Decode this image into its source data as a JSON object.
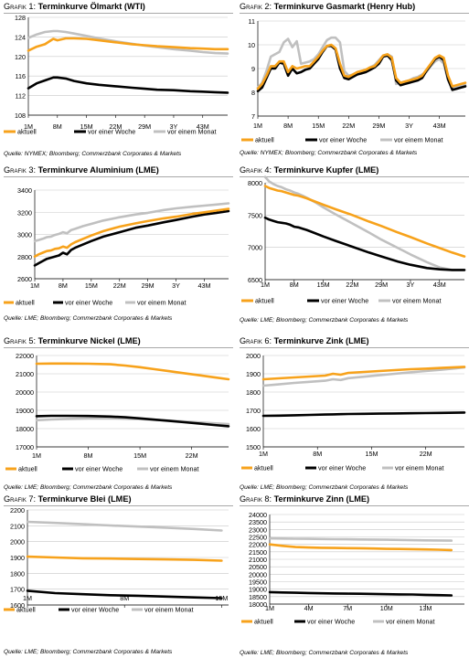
{
  "legend": {
    "aktuell": "aktuell",
    "woche": "vor einer Woche",
    "monat": "vor einem Monat"
  },
  "colors": {
    "aktuell": "#f7a21b",
    "woche": "#000000",
    "monat": "#c0c0c0"
  },
  "panels": [
    {
      "prefix": "Grafik 1:",
      "title": "Terminkurve Ölmarkt (WTI)",
      "source": "Quelle: NYMEX; Bloomberg; Commerzbank Corporates & Markets"
    },
    {
      "prefix": "Grafik 2:",
      "title": "Terminkurve Gasmarkt (Henry Hub)",
      "source": "Quelle: NYMEX; Bloomberg; Commerzbank Corporates & Markets"
    },
    {
      "prefix": "Grafik 3:",
      "title": "Terminkurve Aluminium (LME)",
      "source": "Quelle: LME; Bloomberg; Commerzbank Corporates & Markets"
    },
    {
      "prefix": "Grafik 4:",
      "title": "Terminkurve Kupfer (LME)",
      "source": "Quelle: LME; Bloomberg; Commerzbank Corporates & Markets"
    },
    {
      "prefix": "Grafik 5:",
      "title": "Terminkurve Nickel (LME)",
      "source": "Quelle: LME; Bloomberg; Commerzbank Corporates & Markets"
    },
    {
      "prefix": "Grafik 6:",
      "title": "Terminkurve Zink (LME)",
      "source": "Quelle: LME; Bloomberg; Commerzbank Corporates & Markets"
    },
    {
      "prefix": "Grafik 7:",
      "title": "Terminkurve Blei (LME)",
      "source": "Quelle: LME; Bloomberg; Commerzbank Corporates & Markets"
    },
    {
      "prefix": "Grafik 8:",
      "title": "Terminkurve Zinn (LME)",
      "source": "Quelle: LME; Bloomberg; Commerzbank Corporates & Markets"
    }
  ],
  "chart_data": [
    {
      "type": "line",
      "xlim": [
        1,
        49
      ],
      "ylim": [
        108,
        128
      ],
      "yticks": [
        108,
        112,
        116,
        120,
        124,
        128
      ],
      "xticks": [
        1,
        8,
        15,
        22,
        29,
        36,
        43
      ],
      "xticklabels": [
        "1M",
        "8M",
        "15M",
        "22M",
        "29M",
        "3Y",
        "43M"
      ],
      "x": [
        1,
        3,
        5,
        7,
        8,
        10,
        12,
        15,
        18,
        22,
        26,
        29,
        32,
        36,
        40,
        43,
        46,
        49
      ],
      "series": [
        {
          "name": "aktuell",
          "values": [
            121.2,
            122,
            122.5,
            123.6,
            123.3,
            123.7,
            123.7,
            123.6,
            123.3,
            122.9,
            122.5,
            122.3,
            122.1,
            121.9,
            121.7,
            121.6,
            121.5,
            121.5
          ]
        },
        {
          "name": "vor einer Woche",
          "values": [
            113.5,
            114.5,
            115.1,
            115.7,
            115.7,
            115.5,
            115,
            114.5,
            114.2,
            113.9,
            113.6,
            113.4,
            113.2,
            113.1,
            112.9,
            112.8,
            112.7,
            112.6
          ]
        },
        {
          "name": "vor einem Monat",
          "values": [
            123.8,
            124.5,
            125,
            125.2,
            125.2,
            125,
            124.7,
            124.2,
            123.7,
            123.1,
            122.6,
            122.2,
            121.9,
            121.5,
            121.2,
            120.9,
            120.7,
            120.6
          ]
        }
      ]
    },
    {
      "type": "line",
      "xlim": [
        1,
        49
      ],
      "ylim": [
        7,
        11
      ],
      "yticks": [
        7,
        8,
        9,
        10,
        11
      ],
      "xticks": [
        1,
        8,
        15,
        22,
        29,
        36,
        43
      ],
      "xticklabels": [
        "1M",
        "8M",
        "15M",
        "22M",
        "29M",
        "3Y",
        "43M"
      ],
      "x": [
        1,
        2,
        3,
        4,
        5,
        6,
        7,
        8,
        9,
        10,
        11,
        12,
        13,
        14,
        15,
        16,
        17,
        18,
        19,
        20,
        21,
        22,
        23,
        24,
        25,
        26,
        27,
        28,
        29,
        30,
        31,
        32,
        33,
        34,
        35,
        36,
        37,
        38,
        39,
        40,
        41,
        42,
        43,
        44,
        45,
        46,
        47,
        48,
        49
      ],
      "series": [
        {
          "name": "aktuell",
          "values": [
            8.15,
            8.35,
            8.7,
            9.1,
            9.1,
            9.3,
            9.3,
            8.85,
            9.1,
            9.0,
            9.05,
            9.1,
            9.1,
            9.3,
            9.5,
            9.75,
            9.95,
            10.0,
            9.85,
            9.2,
            8.7,
            8.65,
            8.75,
            8.85,
            8.9,
            8.95,
            9.05,
            9.1,
            9.3,
            9.55,
            9.6,
            9.45,
            8.6,
            8.4,
            8.45,
            8.5,
            8.55,
            8.6,
            8.7,
            8.95,
            9.2,
            9.45,
            9.55,
            9.45,
            8.7,
            8.25,
            8.3,
            8.35,
            8.4
          ]
        },
        {
          "name": "vor einer Woche",
          "values": [
            8.05,
            8.2,
            8.6,
            9.0,
            9.0,
            9.25,
            9.2,
            8.7,
            9.0,
            8.8,
            8.85,
            8.95,
            9.0,
            9.2,
            9.4,
            9.7,
            9.95,
            9.95,
            9.8,
            9.0,
            8.6,
            8.55,
            8.65,
            8.75,
            8.8,
            8.85,
            8.95,
            9.05,
            9.2,
            9.5,
            9.55,
            9.35,
            8.5,
            8.3,
            8.35,
            8.4,
            8.45,
            8.5,
            8.6,
            8.9,
            9.15,
            9.4,
            9.5,
            9.35,
            8.55,
            8.1,
            8.15,
            8.2,
            8.25
          ]
        },
        {
          "name": "vor einem Monat",
          "values": [
            8.2,
            8.4,
            8.9,
            9.5,
            9.6,
            9.7,
            10.1,
            10.25,
            9.9,
            10.15,
            9.2,
            9.25,
            9.3,
            9.4,
            9.6,
            9.9,
            10.2,
            10.3,
            10.3,
            10.1,
            8.9,
            8.7,
            8.75,
            8.85,
            8.9,
            8.95,
            9.05,
            9.15,
            9.35,
            9.55,
            9.6,
            9.5,
            8.35,
            8.4,
            8.45,
            8.5,
            8.6,
            8.65,
            8.75,
            8.85,
            9.1,
            9.3,
            9.4,
            9.2,
            8.5,
            8.15,
            8.2,
            8.25,
            8.3
          ]
        }
      ]
    },
    {
      "type": "line",
      "xlim": [
        1,
        49
      ],
      "ylim": [
        2600,
        3400
      ],
      "yticks": [
        2600,
        2800,
        3000,
        3200,
        3400
      ],
      "xticks": [
        1,
        8,
        15,
        22,
        29,
        36,
        43
      ],
      "xticklabels": [
        "1M",
        "8M",
        "15M",
        "22M",
        "29M",
        "3Y",
        "43M"
      ],
      "x": [
        1,
        2,
        3,
        4,
        5,
        6,
        7,
        8,
        9,
        10,
        11,
        13,
        15,
        18,
        22,
        26,
        29,
        33,
        36,
        40,
        43,
        46,
        49
      ],
      "series": [
        {
          "name": "aktuell",
          "values": [
            2800,
            2820,
            2835,
            2850,
            2855,
            2870,
            2875,
            2890,
            2880,
            2910,
            2930,
            2960,
            2990,
            3030,
            3070,
            3100,
            3120,
            3145,
            3160,
            3185,
            3200,
            3215,
            3230
          ]
        },
        {
          "name": "vor einer Woche",
          "values": [
            2720,
            2740,
            2760,
            2780,
            2790,
            2800,
            2810,
            2835,
            2820,
            2860,
            2880,
            2910,
            2940,
            2980,
            3020,
            3060,
            3080,
            3110,
            3130,
            3160,
            3180,
            3195,
            3210
          ]
        },
        {
          "name": "vor einem Monat",
          "values": [
            2940,
            2950,
            2960,
            2975,
            2980,
            2995,
            3005,
            3020,
            3010,
            3040,
            3050,
            3075,
            3095,
            3125,
            3155,
            3180,
            3195,
            3220,
            3235,
            3250,
            3260,
            3270,
            3280
          ]
        }
      ]
    },
    {
      "type": "line",
      "xlim": [
        1,
        49
      ],
      "ylim": [
        6500,
        8000
      ],
      "yticks": [
        6500,
        7000,
        7500,
        8000
      ],
      "xticks": [
        1,
        8,
        15,
        22,
        29,
        36,
        43
      ],
      "xticklabels": [
        "1M",
        "8M",
        "15M",
        "22M",
        "29M",
        "3Y",
        "43M"
      ],
      "x": [
        1,
        2,
        3,
        4,
        5,
        6,
        7,
        8,
        9,
        10,
        11,
        13,
        15,
        18,
        22,
        26,
        29,
        33,
        36,
        40,
        43,
        46,
        49
      ],
      "series": [
        {
          "name": "aktuell",
          "values": [
            7950,
            7920,
            7900,
            7880,
            7870,
            7850,
            7830,
            7810,
            7800,
            7780,
            7760,
            7710,
            7660,
            7590,
            7500,
            7400,
            7330,
            7230,
            7160,
            7060,
            6990,
            6920,
            6860
          ]
        },
        {
          "name": "vor einer Woche",
          "values": [
            7460,
            7430,
            7410,
            7390,
            7380,
            7370,
            7350,
            7320,
            7310,
            7290,
            7270,
            7220,
            7170,
            7100,
            7010,
            6920,
            6860,
            6780,
            6730,
            6680,
            6660,
            6650,
            6650
          ]
        },
        {
          "name": "vor einem Monat",
          "values": [
            8090,
            8020,
            7980,
            7950,
            7930,
            7900,
            7880,
            7850,
            7830,
            7800,
            7770,
            7700,
            7620,
            7510,
            7370,
            7230,
            7120,
            6990,
            6890,
            6770,
            6690,
            6650,
            6650
          ]
        }
      ]
    },
    {
      "type": "line",
      "xlim": [
        1,
        27
      ],
      "ylim": [
        17000,
        22000
      ],
      "yticks": [
        17000,
        18000,
        19000,
        20000,
        21000,
        22000
      ],
      "xticks": [
        1,
        8,
        15,
        22
      ],
      "xticklabels": [
        "1M",
        "8M",
        "15M",
        "22M"
      ],
      "x": [
        1,
        3,
        5,
        8,
        11,
        13,
        15,
        17,
        19,
        21,
        23,
        25,
        27
      ],
      "series": [
        {
          "name": "aktuell",
          "values": [
            21550,
            21560,
            21560,
            21550,
            21520,
            21450,
            21360,
            21250,
            21140,
            21030,
            20920,
            20810,
            20700
          ]
        },
        {
          "name": "vor einer Woche",
          "values": [
            18680,
            18700,
            18700,
            18690,
            18660,
            18620,
            18560,
            18490,
            18420,
            18350,
            18280,
            18200,
            18130
          ]
        },
        {
          "name": "vor einem Monat",
          "values": [
            18460,
            18500,
            18530,
            18550,
            18560,
            18540,
            18520,
            18480,
            18440,
            18390,
            18340,
            18290,
            18250
          ]
        }
      ]
    },
    {
      "type": "line",
      "xlim": [
        1,
        27
      ],
      "ylim": [
        1500,
        2000
      ],
      "yticks": [
        1500,
        1600,
        1700,
        1800,
        1900,
        2000
      ],
      "xticks": [
        1,
        8,
        15,
        22
      ],
      "xticklabels": [
        "1M",
        "8M",
        "15M",
        "22M"
      ],
      "x": [
        1,
        3,
        5,
        7,
        9,
        10,
        11,
        12,
        14,
        16,
        18,
        20,
        22,
        24,
        26,
        27
      ],
      "series": [
        {
          "name": "aktuell",
          "values": [
            1870,
            1875,
            1880,
            1885,
            1890,
            1900,
            1895,
            1905,
            1910,
            1915,
            1920,
            1925,
            1928,
            1932,
            1936,
            1938
          ]
        },
        {
          "name": "vor einer Woche",
          "values": [
            1670,
            1671,
            1673,
            1675,
            1677,
            1678,
            1679,
            1680,
            1681,
            1682,
            1683,
            1684,
            1685,
            1686,
            1687,
            1688
          ]
        },
        {
          "name": "vor einem Monat",
          "values": [
            1835,
            1842,
            1850,
            1856,
            1862,
            1870,
            1866,
            1876,
            1884,
            1892,
            1900,
            1908,
            1915,
            1922,
            1930,
            1935
          ]
        }
      ]
    },
    {
      "type": "line",
      "xlim": [
        1,
        15.5
      ],
      "ylim": [
        1600,
        2200
      ],
      "yticks": [
        1600,
        1700,
        1800,
        1900,
        2000,
        2100,
        2200
      ],
      "xticks": [
        1,
        8,
        15
      ],
      "xticklabels": [
        "1M",
        "8M",
        "15M"
      ],
      "x": [
        1,
        3,
        5,
        7,
        9,
        11,
        13,
        15
      ],
      "series": [
        {
          "name": "aktuell",
          "values": [
            1905,
            1900,
            1895,
            1893,
            1890,
            1888,
            1885,
            1880
          ]
        },
        {
          "name": "vor einer Woche",
          "values": [
            1690,
            1675,
            1668,
            1662,
            1658,
            1653,
            1648,
            1643
          ]
        },
        {
          "name": "vor einem Monat",
          "values": [
            2125,
            2118,
            2110,
            2102,
            2095,
            2088,
            2080,
            2070
          ]
        }
      ]
    },
    {
      "type": "line",
      "xlim": [
        1,
        16
      ],
      "ylim": [
        18000,
        24000
      ],
      "yticks": [
        18000,
        18500,
        19000,
        19500,
        20000,
        20500,
        21000,
        21500,
        22000,
        22500,
        23000,
        23500,
        24000
      ],
      "xticks": [
        1,
        4,
        7,
        10,
        13
      ],
      "xticklabels": [
        "1M",
        "4M",
        "7M",
        "10M",
        "13M"
      ],
      "x": [
        1,
        2,
        3,
        4,
        5,
        6,
        7,
        8,
        9,
        10,
        11,
        12,
        13,
        14,
        15
      ],
      "series": [
        {
          "name": "aktuell",
          "values": [
            22000,
            21900,
            21820,
            21790,
            21770,
            21760,
            21750,
            21740,
            21720,
            21700,
            21690,
            21680,
            21660,
            21640,
            21620
          ]
        },
        {
          "name": "vor einer Woche",
          "values": [
            18800,
            18780,
            18760,
            18740,
            18720,
            18710,
            18700,
            18690,
            18680,
            18660,
            18650,
            18640,
            18620,
            18600,
            18580
          ]
        },
        {
          "name": "vor einem Monat",
          "values": [
            22400,
            22390,
            22380,
            22370,
            22360,
            22350,
            22340,
            22330,
            22320,
            22310,
            22300,
            22280,
            22270,
            22260,
            22250
          ]
        }
      ]
    }
  ]
}
